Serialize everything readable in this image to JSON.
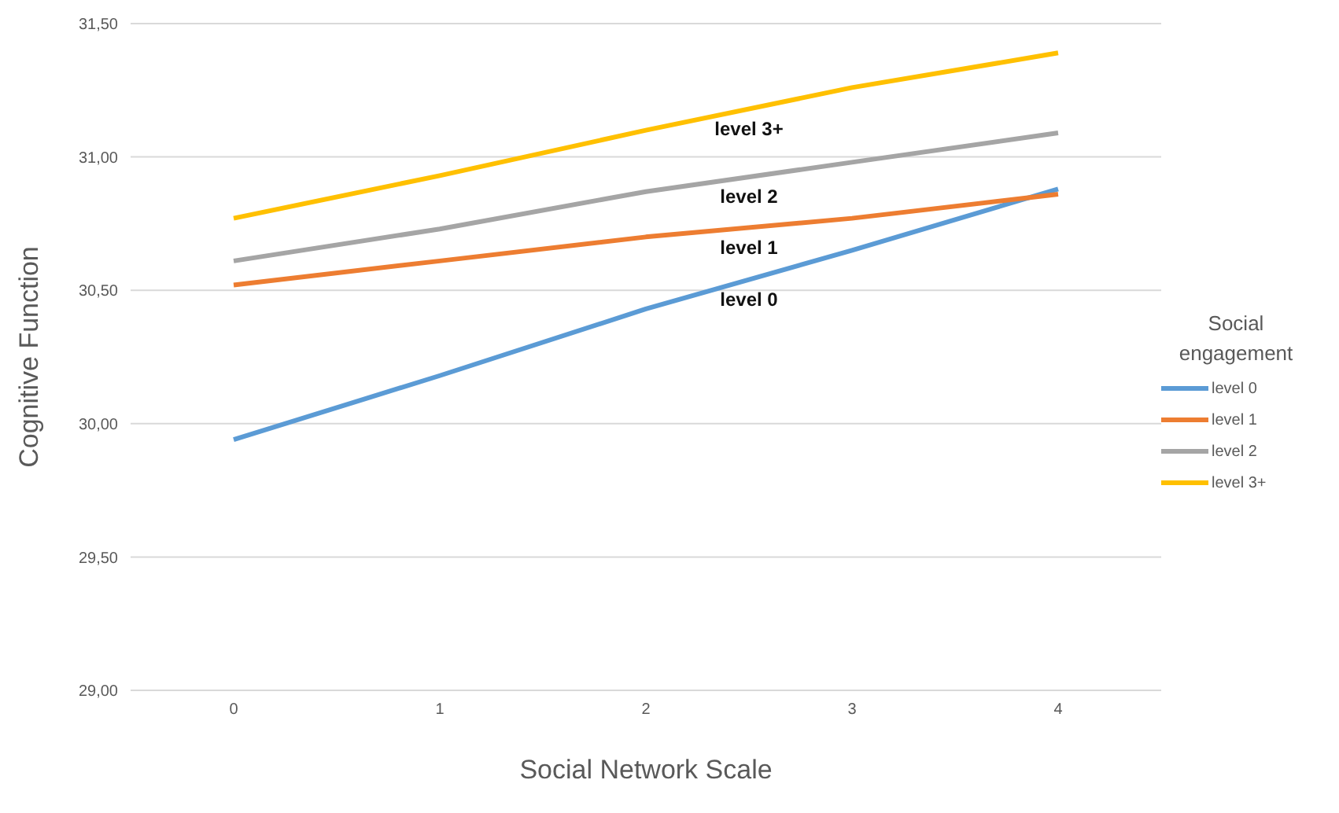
{
  "chart_data": {
    "type": "line",
    "xlabel": "Social Network Scale",
    "ylabel": "Cognitive Function",
    "legend_title": "Social engagement",
    "x": [
      0,
      1,
      2,
      3,
      4
    ],
    "series": [
      {
        "name": "level 0",
        "color": "#5b9bd5",
        "values": [
          29.94,
          30.18,
          30.43,
          30.65,
          30.88
        ]
      },
      {
        "name": "level 1",
        "color": "#ed7d31",
        "values": [
          30.52,
          30.61,
          30.7,
          30.77,
          30.86
        ]
      },
      {
        "name": "level 2",
        "color": "#a5a5a5",
        "values": [
          30.61,
          30.73,
          30.87,
          30.98,
          31.09
        ]
      },
      {
        "name": "level 3+",
        "color": "#ffc000",
        "values": [
          30.77,
          30.93,
          31.1,
          31.26,
          31.39
        ]
      }
    ],
    "xlim": [
      -0.5,
      4.5
    ],
    "xticks": [
      0,
      1,
      2,
      3,
      4
    ],
    "ylim": [
      29,
      31.5
    ],
    "yticks": [
      {
        "value": 29,
        "label": "29,00"
      },
      {
        "value": 29.5,
        "label": "29,50"
      },
      {
        "value": 30,
        "label": "30,00"
      },
      {
        "value": 30.5,
        "label": "30,50"
      },
      {
        "value": 31,
        "label": "31,00"
      },
      {
        "value": 31.5,
        "label": "31,50"
      }
    ],
    "annotations": [
      "level 3+",
      "level 2",
      "level 1",
      "level 0"
    ],
    "grid": "y",
    "legend": "right",
    "marker": "none",
    "line_style": "solid"
  }
}
